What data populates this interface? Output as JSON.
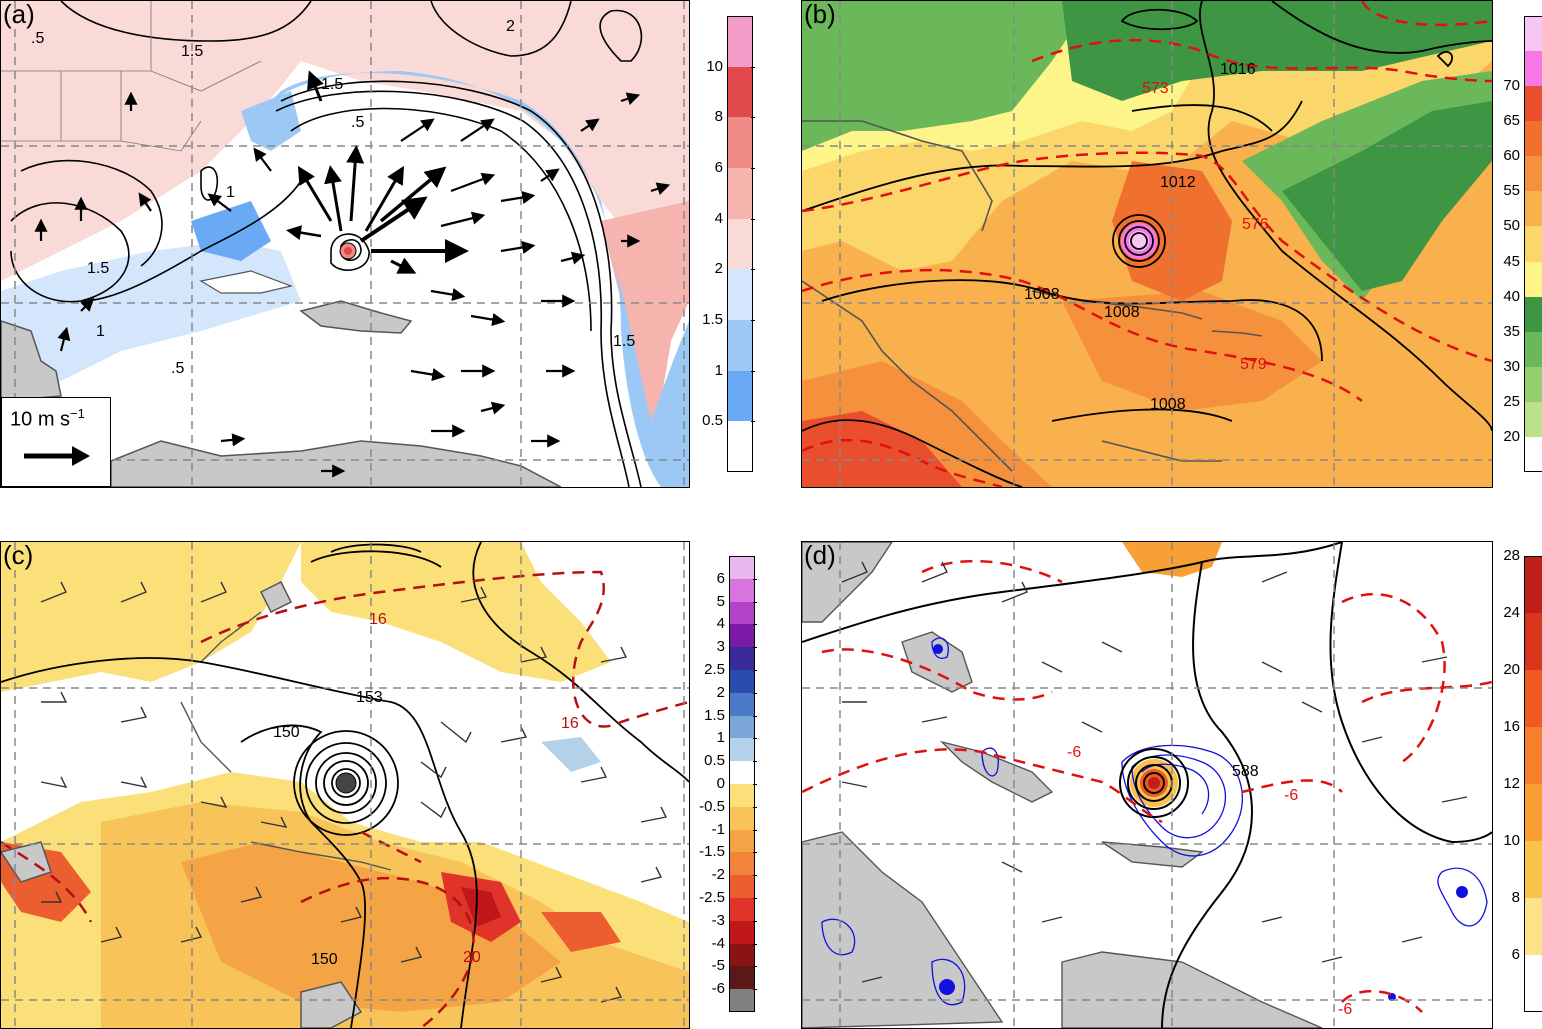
{
  "panels": {
    "a": {
      "label": "(a)",
      "colorbar": {
        "colors": [
          "#ffffff",
          "#6aaaf5",
          "#9cc8f5",
          "#d4e6fb",
          "#f9dad6",
          "#f6b4ae",
          "#f08a84",
          "#e0484c",
          "#f49cc8"
        ],
        "labels": [
          "0.5",
          "1",
          "1.5",
          "2",
          "4",
          "6",
          "8",
          "10"
        ]
      },
      "contour_labels": [
        "2",
        "1.5",
        "1.5",
        ".5",
        "1",
        "1.5",
        "1",
        "1.5",
        ".5",
        ".5"
      ],
      "reference_vector": {
        "value": "10",
        "unit": "m s",
        "exponent": "−1"
      }
    },
    "b": {
      "label": "(b)",
      "colorbar": {
        "colors": [
          "#ffffff",
          "#bde08a",
          "#94cf6d",
          "#6ab85a",
          "#3e9644",
          "#fdf58a",
          "#fbd66a",
          "#f8b14c",
          "#f5913c",
          "#f0702f",
          "#ea4f2d",
          "#f678e6",
          "#f7c6f5"
        ],
        "labels": [
          "20",
          "25",
          "30",
          "35",
          "40",
          "45",
          "50",
          "55",
          "60",
          "65",
          "70"
        ]
      },
      "contour_labels": [
        "1016",
        "1012",
        "1008",
        "1008",
        "1008"
      ],
      "height_labels": [
        "573",
        "576",
        "579"
      ]
    },
    "c": {
      "label": "(c)",
      "colorbar": {
        "colors": [
          "#e8b8ee",
          "#d675e0",
          "#b443c8",
          "#7a1aa7",
          "#3a2a9a",
          "#2a4cb0",
          "#4a7ac8",
          "#7aa6d8",
          "#b3d2ea",
          "#ffffff",
          "#fbe07a",
          "#f8c45a",
          "#f5a445",
          "#f2843a",
          "#ec5e30",
          "#e0332a",
          "#c01818",
          "#8a1414",
          "#5a1818",
          "#808080"
        ],
        "labels": [
          "6",
          "5",
          "4",
          "3",
          "2.5",
          "2",
          "1.5",
          "1",
          "0.5",
          "0",
          "-0.5",
          "-1",
          "-1.5",
          "-2",
          "-2.5",
          "-3",
          "-4",
          "-5",
          "-6"
        ]
      },
      "contour_labels": [
        "153",
        "150",
        "150"
      ],
      "temp_labels": [
        "16",
        "16",
        "20"
      ]
    },
    "d": {
      "label": "(d)",
      "colorbar": {
        "colors": [
          "#ffffff",
          "#fde28a",
          "#fbc24b",
          "#f8a036",
          "#f57f2c",
          "#ee5a22",
          "#d8361c",
          "#c0201a"
        ],
        "labels": [
          "6",
          "8",
          "10",
          "12",
          "16",
          "20",
          "24",
          "28"
        ]
      },
      "contour_labels": [
        "588"
      ],
      "dashed_labels": [
        "-6",
        "-6",
        "-6"
      ]
    }
  }
}
